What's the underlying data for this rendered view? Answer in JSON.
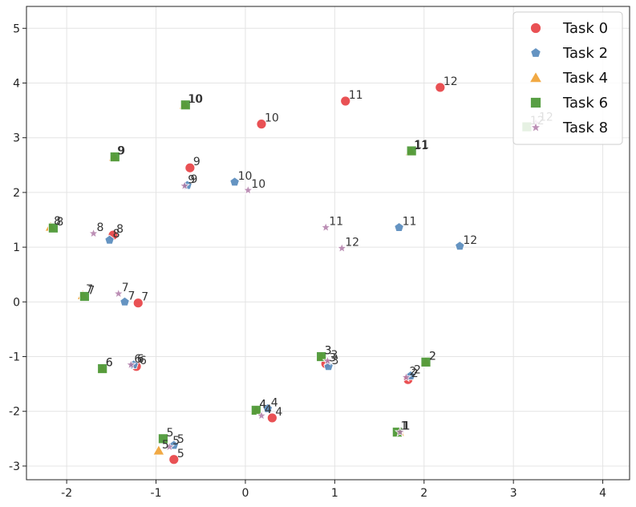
{
  "chart_data": {
    "type": "scatter",
    "xlim": [
      -2.45,
      4.3
    ],
    "ylim": [
      -3.25,
      5.4
    ],
    "xticks": [
      -2,
      -1,
      0,
      1,
      2,
      3,
      4
    ],
    "yticks": [
      -3,
      -2,
      -1,
      0,
      1,
      2,
      3,
      4,
      5
    ],
    "grid": true,
    "legend_position": "top-right",
    "series": [
      {
        "name": "Task 0",
        "marker": "circle",
        "color": "#e8484b",
        "points": [
          {
            "x": 1.72,
            "y": -2.38,
            "label": "1"
          },
          {
            "x": 1.82,
            "y": -1.42,
            "label": "2"
          },
          {
            "x": 0.9,
            "y": -1.13,
            "label": "3"
          },
          {
            "x": 0.3,
            "y": -2.12,
            "label": "4"
          },
          {
            "x": -0.8,
            "y": -2.88,
            "label": "5"
          },
          {
            "x": -1.22,
            "y": -1.18,
            "label": "6"
          },
          {
            "x": -1.2,
            "y": -0.02,
            "label": "7"
          },
          {
            "x": -1.48,
            "y": 1.22,
            "label": "8"
          },
          {
            "x": -0.62,
            "y": 2.45,
            "label": "9"
          },
          {
            "x": 0.18,
            "y": 3.25,
            "label": "10"
          },
          {
            "x": 1.12,
            "y": 3.67,
            "label": "11"
          },
          {
            "x": 2.18,
            "y": 3.92,
            "label": "12"
          }
        ]
      },
      {
        "name": "Task 2",
        "marker": "pentagon",
        "color": "#5d8ebf",
        "points": [
          {
            "x": 1.72,
            "y": -2.38,
            "label": "1"
          },
          {
            "x": 1.85,
            "y": -1.35,
            "label": "2"
          },
          {
            "x": 0.93,
            "y": -1.18,
            "label": "3"
          },
          {
            "x": 0.25,
            "y": -1.95,
            "label": "4"
          },
          {
            "x": -0.8,
            "y": -2.62,
            "label": "5"
          },
          {
            "x": -1.25,
            "y": -1.15,
            "label": "6"
          },
          {
            "x": -1.35,
            "y": 0.0,
            "label": "7"
          },
          {
            "x": -1.52,
            "y": 1.13,
            "label": "8"
          },
          {
            "x": -0.65,
            "y": 2.13,
            "label": "9"
          },
          {
            "x": -0.12,
            "y": 2.19,
            "label": "10"
          },
          {
            "x": 1.72,
            "y": 1.36,
            "label": "11"
          },
          {
            "x": 2.4,
            "y": 1.02,
            "label": "12"
          }
        ]
      },
      {
        "name": "Task 4",
        "marker": "triangle",
        "color": "#f0a43a",
        "points": [
          {
            "x": 1.72,
            "y": -2.38,
            "label": "1"
          },
          {
            "x": 2.02,
            "y": -1.1,
            "label": "2"
          },
          {
            "x": 0.85,
            "y": -1.0,
            "label": "3"
          },
          {
            "x": 0.12,
            "y": -1.98,
            "label": "4"
          },
          {
            "x": -0.97,
            "y": -2.72,
            "label": "5"
          },
          {
            "x": -1.6,
            "y": -1.22,
            "label": "6"
          },
          {
            "x": -1.82,
            "y": 0.12,
            "label": "7"
          },
          {
            "x": -2.18,
            "y": 1.37,
            "label": "8"
          },
          {
            "x": -1.47,
            "y": 2.65,
            "label": "9"
          },
          {
            "x": -0.68,
            "y": 3.6,
            "label": "10"
          },
          {
            "x": 1.85,
            "y": 2.75,
            "label": "11"
          }
        ]
      },
      {
        "name": "Task 6",
        "marker": "square",
        "color": "#4f9a3a",
        "points": [
          {
            "x": 1.7,
            "y": -2.38,
            "label": "1"
          },
          {
            "x": 2.02,
            "y": -1.1,
            "label": "2"
          },
          {
            "x": 0.85,
            "y": -1.0,
            "label": "3"
          },
          {
            "x": 0.12,
            "y": -1.98,
            "label": "4"
          },
          {
            "x": -0.92,
            "y": -2.5,
            "label": "5"
          },
          {
            "x": -1.6,
            "y": -1.22,
            "label": "6"
          },
          {
            "x": -1.8,
            "y": 0.1,
            "label": "7"
          },
          {
            "x": -2.15,
            "y": 1.35,
            "label": "8"
          },
          {
            "x": -1.46,
            "y": 2.65,
            "label": "9"
          },
          {
            "x": -0.67,
            "y": 3.6,
            "label": "10"
          },
          {
            "x": 1.86,
            "y": 2.76,
            "label": "11"
          },
          {
            "x": 3.15,
            "y": 3.2,
            "label": "12"
          }
        ]
      },
      {
        "name": "Task 8",
        "marker": "star",
        "color": "#b07ba8",
        "points": [
          {
            "x": 1.73,
            "y": -2.38,
            "label": "1"
          },
          {
            "x": 1.8,
            "y": -1.38,
            "label": "2"
          },
          {
            "x": 0.92,
            "y": -1.08,
            "label": "3"
          },
          {
            "x": 0.18,
            "y": -2.08,
            "label": "4"
          },
          {
            "x": -0.85,
            "y": -2.65,
            "label": "5"
          },
          {
            "x": -1.28,
            "y": -1.15,
            "label": "6"
          },
          {
            "x": -1.42,
            "y": 0.15,
            "label": "7"
          },
          {
            "x": -1.7,
            "y": 1.25,
            "label": "8"
          },
          {
            "x": -0.68,
            "y": 2.12,
            "label": "9"
          },
          {
            "x": 0.03,
            "y": 2.04,
            "label": "10"
          },
          {
            "x": 0.9,
            "y": 1.36,
            "label": "11"
          },
          {
            "x": 1.08,
            "y": 0.98,
            "label": "12"
          },
          {
            "x": 3.25,
            "y": 3.27,
            "label": "12"
          }
        ]
      }
    ]
  }
}
